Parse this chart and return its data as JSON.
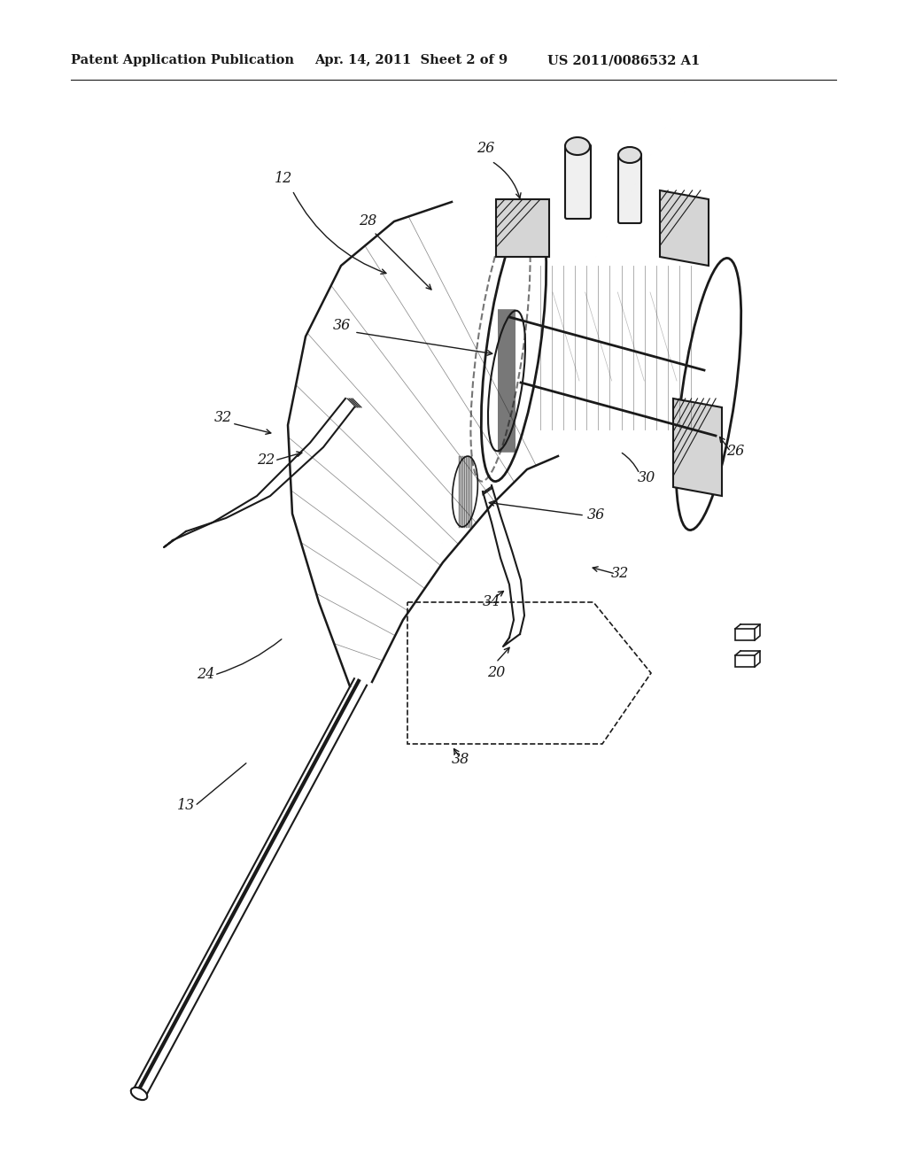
{
  "background_color": "#ffffff",
  "header_left": "Patent Application Publication",
  "header_center": "Apr. 14, 2011  Sheet 2 of 9",
  "header_right": "US 2011/0086532 A1",
  "drawing_color": "#1a1a1a",
  "label_fs": 11,
  "header_fs": 10.5
}
